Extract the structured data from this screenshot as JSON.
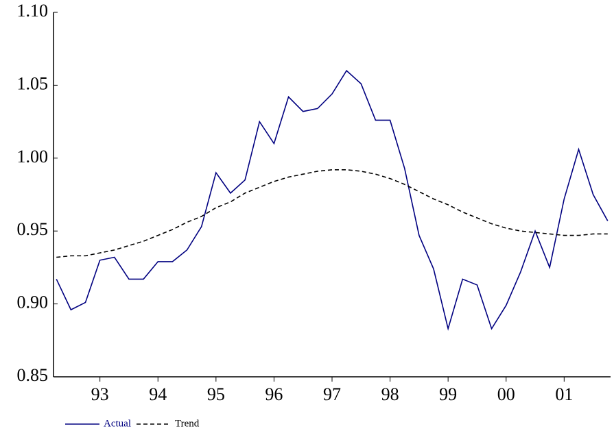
{
  "chart_data": {
    "type": "line",
    "x": [
      92.25,
      92.5,
      92.75,
      93,
      93.25,
      93.5,
      93.75,
      94,
      94.25,
      94.5,
      94.75,
      95,
      95.25,
      95.5,
      95.75,
      96,
      96.25,
      96.5,
      96.75,
      97,
      97.25,
      97.5,
      97.75,
      98,
      98.25,
      98.5,
      98.75,
      99,
      99.25,
      99.5,
      99.75,
      100,
      100.25,
      100.5,
      100.75,
      101,
      101.25,
      101.5,
      101.75
    ],
    "series": [
      {
        "name": "Actual",
        "color": "#000080",
        "dashed": false,
        "values": [
          0.917,
          0.896,
          0.901,
          0.93,
          0.932,
          0.917,
          0.917,
          0.929,
          0.929,
          0.937,
          0.953,
          0.99,
          0.976,
          0.985,
          1.025,
          1.01,
          1.042,
          1.032,
          1.034,
          1.044,
          1.06,
          1.051,
          1.026,
          1.026,
          0.993,
          0.947,
          0.924,
          0.883,
          0.917,
          0.913,
          0.883,
          0.899,
          0.922,
          0.95,
          0.925,
          0.972,
          1.006,
          0.975,
          0.957
        ]
      },
      {
        "name": "Trend",
        "color": "#000000",
        "dashed": true,
        "values": [
          0.932,
          0.933,
          0.933,
          0.935,
          0.937,
          0.94,
          0.943,
          0.947,
          0.951,
          0.956,
          0.96,
          0.966,
          0.97,
          0.976,
          0.98,
          0.984,
          0.987,
          0.989,
          0.991,
          0.992,
          0.992,
          0.991,
          0.989,
          0.986,
          0.982,
          0.977,
          0.972,
          0.968,
          0.963,
          0.959,
          0.955,
          0.952,
          0.95,
          0.949,
          0.948,
          0.947,
          0.947,
          0.948,
          0.948
        ]
      }
    ],
    "xlim": [
      92.2,
      101.8
    ],
    "xticks": [
      93,
      94,
      95,
      96,
      97,
      98,
      99,
      {
        "value": 100,
        "label": "00"
      },
      {
        "value": 101,
        "label": "01"
      }
    ],
    "ylim": [
      0.85,
      1.1
    ],
    "yticks": [
      {
        "value": 0.85,
        "label": "0.85"
      },
      {
        "value": 0.9,
        "label": "0.90"
      },
      {
        "value": 0.95,
        "label": "0.95"
      },
      {
        "value": 1.0,
        "label": "1.00"
      },
      {
        "value": 1.05,
        "label": "1.05"
      },
      {
        "value": 1.1,
        "label": "1.10"
      }
    ],
    "grid": false
  }
}
